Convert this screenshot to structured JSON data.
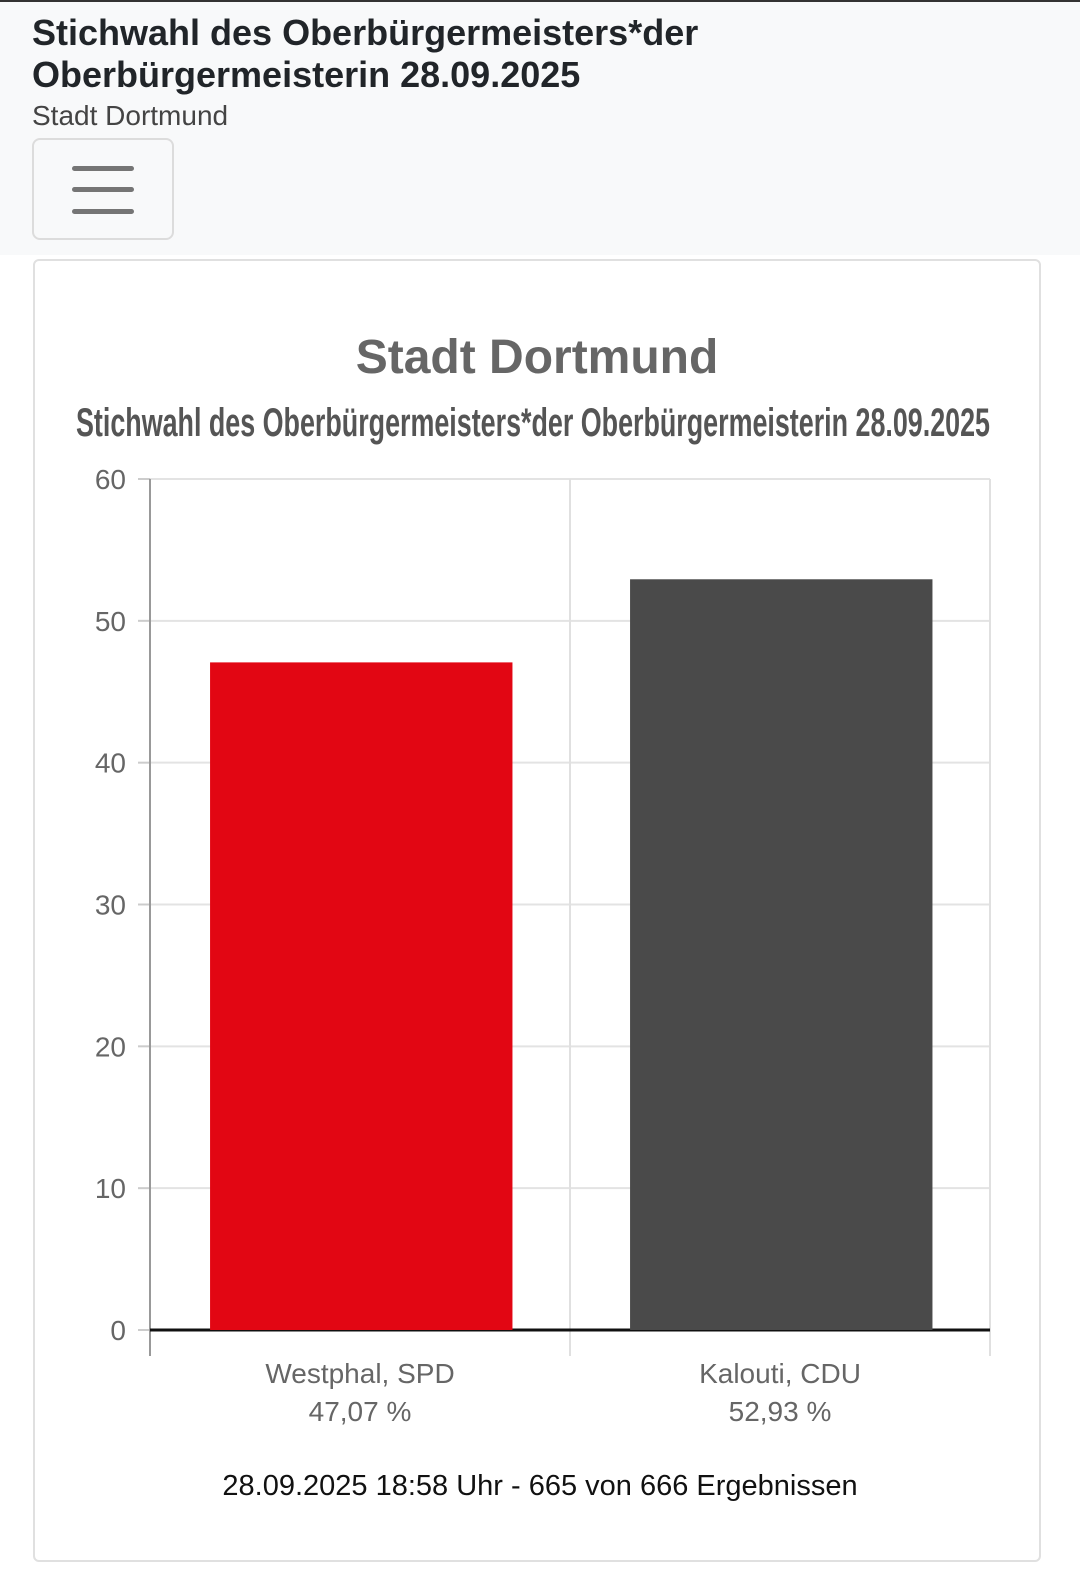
{
  "header": {
    "title": "Stichwahl des Oberbürgermeisters*der Oberbürgermeisterin 28.09.2025",
    "subtitle": "Stadt Dortmund",
    "menu_icon": "hamburger-icon"
  },
  "chart_data": {
    "type": "bar",
    "title": "Stadt Dortmund",
    "subtitle": "Stichwahl des Oberbürgermeisters*der Oberbürgermeisterin 28.09.2025",
    "categories": [
      "Westphal, SPD",
      "Kalouti, CDU"
    ],
    "value_labels": [
      "47,07 %",
      "52,93 %"
    ],
    "values": [
      47.07,
      52.93
    ],
    "colors": [
      "#e20613",
      "#4a4a4a"
    ],
    "ylim": [
      0,
      60
    ],
    "yticks": [
      0,
      10,
      20,
      30,
      40,
      50,
      60
    ],
    "grid": true,
    "xlabel": "",
    "ylabel": ""
  },
  "footer": {
    "status": "28.09.2025 18:58 Uhr - 665 von 666 Ergebnissen"
  }
}
